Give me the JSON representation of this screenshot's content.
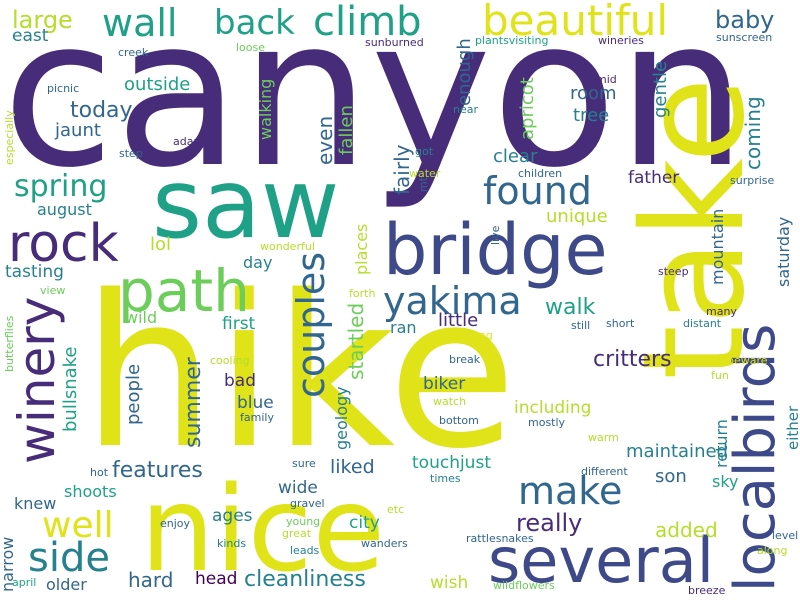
{
  "colors": {
    "dark_purple": "#472c7a",
    "purple": "#3e4989",
    "navy": "#31668e",
    "teal": "#26818e",
    "green": "#1fa187",
    "light_green": "#6ccd5a",
    "yellow_green": "#b5de2b",
    "yellow": "#dfe318",
    "black_purple": "#440154"
  },
  "words": [
    {
      "text": "canyon"
    },
    {
      "text": "hike"
    },
    {
      "text": "take"
    },
    {
      "text": "nice"
    },
    {
      "text": "saw"
    },
    {
      "text": "bridge"
    },
    {
      "text": "several"
    },
    {
      "text": "path"
    },
    {
      "text": "localbirds"
    },
    {
      "text": "rock"
    },
    {
      "text": "winery"
    },
    {
      "text": "beautiful"
    },
    {
      "text": "climb"
    },
    {
      "text": "wall"
    },
    {
      "text": "back"
    },
    {
      "text": "found"
    },
    {
      "text": "yakima"
    },
    {
      "text": "make"
    },
    {
      "text": "couples"
    },
    {
      "text": "side"
    },
    {
      "text": "well"
    },
    {
      "text": "spring"
    },
    {
      "text": "large"
    },
    {
      "text": "baby"
    },
    {
      "text": "east"
    },
    {
      "text": "outside"
    },
    {
      "text": "today"
    },
    {
      "text": "jaunt"
    },
    {
      "text": "enough"
    },
    {
      "text": "apricot"
    },
    {
      "text": "room"
    },
    {
      "text": "tree"
    },
    {
      "text": "gentle"
    },
    {
      "text": "coming"
    },
    {
      "text": "clear"
    },
    {
      "text": "even"
    },
    {
      "text": "fallen"
    },
    {
      "text": "fairly"
    },
    {
      "text": "father"
    },
    {
      "text": "unique"
    },
    {
      "text": "august"
    },
    {
      "text": "lol"
    },
    {
      "text": "places"
    },
    {
      "text": "walk"
    },
    {
      "text": "mountain"
    },
    {
      "text": "saturday"
    },
    {
      "text": "tasting"
    },
    {
      "text": "wild"
    },
    {
      "text": "first"
    },
    {
      "text": "day"
    },
    {
      "text": "walking"
    },
    {
      "text": "little"
    },
    {
      "text": "ran"
    },
    {
      "text": "startled"
    },
    {
      "text": "critters"
    },
    {
      "text": "summer"
    },
    {
      "text": "people"
    },
    {
      "text": "bad"
    },
    {
      "text": "blue"
    },
    {
      "text": "bullsnake"
    },
    {
      "text": "geology"
    },
    {
      "text": "biker"
    },
    {
      "text": "including"
    },
    {
      "text": "return"
    },
    {
      "text": "either"
    },
    {
      "text": "features"
    },
    {
      "text": "liked"
    },
    {
      "text": "maintained"
    },
    {
      "text": "touchjust"
    },
    {
      "text": "son"
    },
    {
      "text": "sky"
    },
    {
      "text": "shoots"
    },
    {
      "text": "knew"
    },
    {
      "text": "wide"
    },
    {
      "text": "ages"
    },
    {
      "text": "city"
    },
    {
      "text": "really"
    },
    {
      "text": "added"
    },
    {
      "text": "narrow"
    },
    {
      "text": "hard"
    },
    {
      "text": "head"
    },
    {
      "text": "cleanliness"
    },
    {
      "text": "wish"
    },
    {
      "text": "older"
    },
    {
      "text": "creek"
    },
    {
      "text": "loose"
    },
    {
      "text": "sunburned"
    },
    {
      "text": "plantsvisiting"
    },
    {
      "text": "wineries"
    },
    {
      "text": "sunscreen"
    },
    {
      "text": "picnic"
    },
    {
      "text": "mid"
    },
    {
      "text": "near"
    },
    {
      "text": "especially"
    },
    {
      "text": "adams"
    },
    {
      "text": "step"
    },
    {
      "text": "got"
    },
    {
      "text": "water"
    },
    {
      "text": "mt"
    },
    {
      "text": "children"
    },
    {
      "text": "surprise"
    },
    {
      "text": "wonderful"
    },
    {
      "text": "live"
    },
    {
      "text": "forth"
    },
    {
      "text": "steep"
    },
    {
      "text": "butterflies"
    },
    {
      "text": "view"
    },
    {
      "text": "many"
    },
    {
      "text": "distant"
    },
    {
      "text": "short"
    },
    {
      "text": "still"
    },
    {
      "text": "long"
    },
    {
      "text": "cooling"
    },
    {
      "text": "beware"
    },
    {
      "text": "fun"
    },
    {
      "text": "break"
    },
    {
      "text": "family"
    },
    {
      "text": "watch"
    },
    {
      "text": "bottom"
    },
    {
      "text": "mostly"
    },
    {
      "text": "warm"
    },
    {
      "text": "hot"
    },
    {
      "text": "sure"
    },
    {
      "text": "times"
    },
    {
      "text": "different"
    },
    {
      "text": "gravel"
    },
    {
      "text": "etc"
    },
    {
      "text": "young"
    },
    {
      "text": "great"
    },
    {
      "text": "enjoy"
    },
    {
      "text": "kinds"
    },
    {
      "text": "leads"
    },
    {
      "text": "wanders"
    },
    {
      "text": "rattlesnakes"
    },
    {
      "text": "level"
    },
    {
      "text": "along"
    },
    {
      "text": "april"
    },
    {
      "text": "wildflowers"
    },
    {
      "text": "breeze"
    }
  ]
}
